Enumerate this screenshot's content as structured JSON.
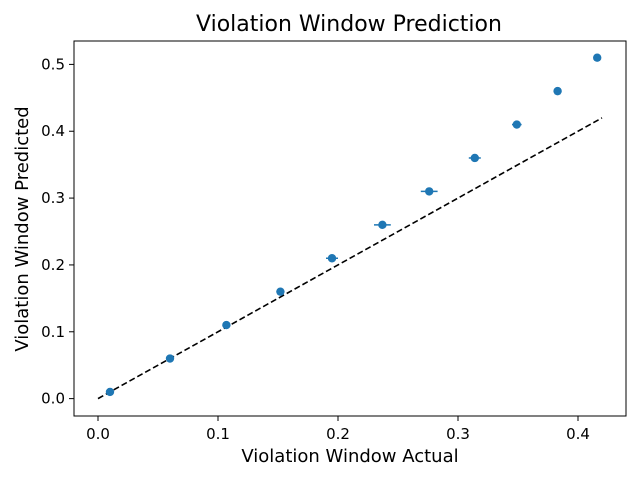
{
  "chart_data": {
    "type": "scatter",
    "title": "Violation Window Prediction",
    "xlabel": "Violation Window Actual",
    "ylabel": "Violation Window Predicted",
    "xlim": [
      -0.02,
      0.44
    ],
    "ylim": [
      -0.026,
      0.535
    ],
    "xticks": [
      0.0,
      0.1,
      0.2,
      0.3,
      0.4
    ],
    "xtick_labels": [
      "0.0",
      "0.1",
      "0.2",
      "0.3",
      "0.4"
    ],
    "yticks": [
      0.0,
      0.1,
      0.2,
      0.3,
      0.4,
      0.5
    ],
    "ytick_labels": [
      "0.0",
      "0.1",
      "0.2",
      "0.3",
      "0.4",
      "0.5"
    ],
    "grid": false,
    "series": [
      {
        "kind": "scatter",
        "color": "#1f77b4",
        "x": [
          0.01,
          0.06,
          0.107,
          0.152,
          0.195,
          0.237,
          0.276,
          0.314,
          0.349,
          0.383,
          0.416
        ],
        "y": [
          0.01,
          0.06,
          0.11,
          0.16,
          0.21,
          0.26,
          0.31,
          0.36,
          0.41,
          0.46,
          0.51
        ],
        "xerr": [
          0.002,
          0.002,
          0.003,
          0.003,
          0.005,
          0.007,
          0.007,
          0.005,
          0.004,
          0.003,
          0.002
        ]
      },
      {
        "kind": "line",
        "style": "dashed",
        "color": "#000000",
        "x": [
          0.0,
          0.42
        ],
        "y": [
          0.0,
          0.42
        ]
      }
    ]
  }
}
